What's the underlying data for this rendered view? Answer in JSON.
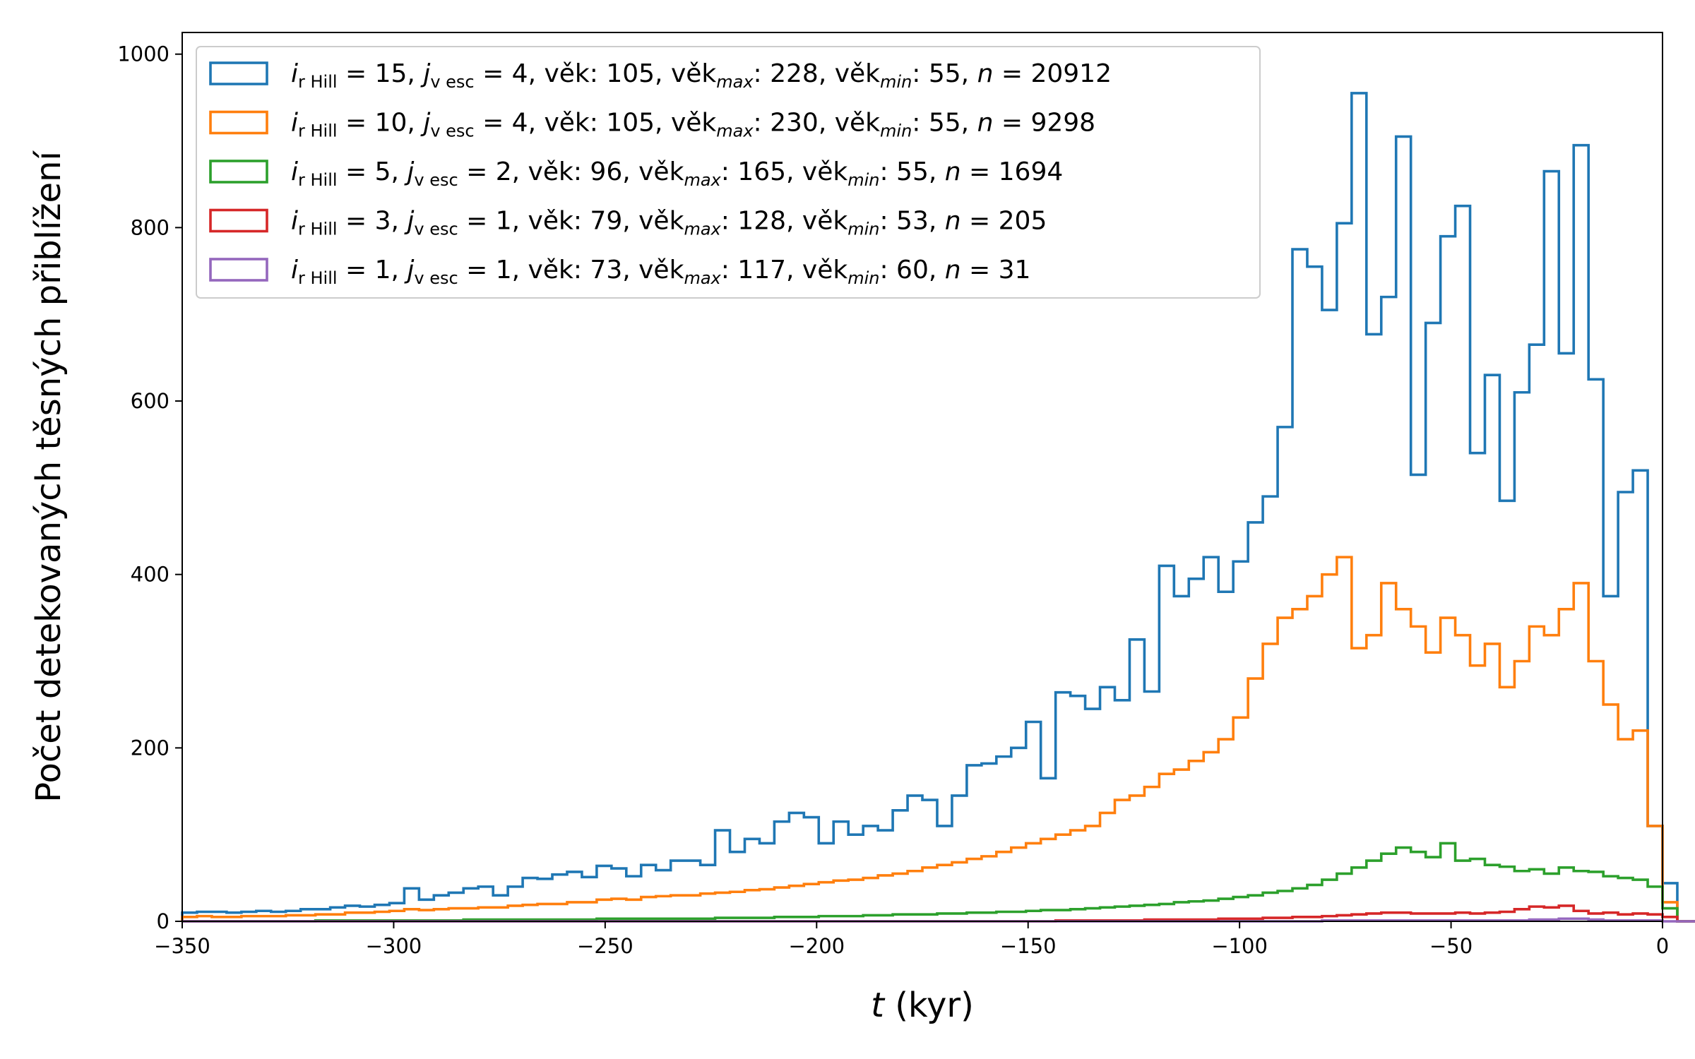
{
  "chart_data": {
    "type": "histogram",
    "xlabel_var": "t",
    "xlabel_unit": "(kyr)",
    "ylabel": "Počet detekovaných těsných přiblížení",
    "xlim": [
      -350,
      0
    ],
    "ylim": [
      0,
      1025
    ],
    "xticks": [
      -350,
      -300,
      -250,
      -200,
      -150,
      -100,
      -50,
      0
    ],
    "xtick_labels": [
      "−350",
      "−300",
      "−250",
      "−200",
      "−150",
      "−100",
      "−50",
      "0"
    ],
    "yticks": [
      0,
      200,
      400,
      600,
      800,
      1000
    ],
    "ytick_labels": [
      "0",
      "200",
      "400",
      "600",
      "800",
      "1000"
    ],
    "bin_start": -350,
    "bin_width": 3.5,
    "grid": false,
    "legend_position": "upper left",
    "series": [
      {
        "color": "#1f77b4",
        "legend": {
          "i": "15",
          "j": "4",
          "age": "105",
          "age_max": "228",
          "age_min": "55",
          "n": "20912"
        },
        "values": [
          10,
          11,
          11,
          10,
          11,
          12,
          11,
          12,
          14,
          14,
          16,
          18,
          17,
          19,
          21,
          38,
          25,
          30,
          33,
          38,
          40,
          30,
          40,
          50,
          49,
          54,
          57,
          51,
          64,
          61,
          52,
          65,
          59,
          70,
          70,
          65,
          105,
          80,
          95,
          90,
          115,
          125,
          120,
          90,
          115,
          100,
          110,
          105,
          128,
          145,
          140,
          110,
          145,
          180,
          182,
          190,
          200,
          230,
          165,
          264,
          260,
          245,
          270,
          255,
          325,
          265,
          410,
          375,
          395,
          420,
          380,
          415,
          460,
          490,
          570,
          775,
          755,
          705,
          805,
          955,
          677,
          720,
          905,
          515,
          690,
          790,
          825,
          540,
          630,
          485,
          610,
          665,
          865,
          655,
          895,
          625,
          375,
          495,
          520,
          110,
          44,
          0,
          0,
          0,
          0,
          0,
          0,
          0,
          0,
          0,
          0,
          0,
          0,
          0,
          0,
          0,
          0,
          0,
          0,
          0,
          0,
          0,
          0,
          0,
          0
        ]
      },
      {
        "color": "#ff7f0e",
        "legend": {
          "i": "10",
          "j": "4",
          "age": "105",
          "age_max": "230",
          "age_min": "55",
          "n": "9298"
        },
        "values": [
          5,
          6,
          5,
          5,
          6,
          6,
          6,
          7,
          7,
          8,
          8,
          10,
          10,
          11,
          12,
          14,
          13,
          14,
          15,
          15,
          16,
          16,
          18,
          19,
          20,
          20,
          22,
          22,
          25,
          26,
          25,
          28,
          29,
          30,
          30,
          32,
          33,
          34,
          36,
          37,
          39,
          41,
          43,
          45,
          47,
          48,
          50,
          53,
          55,
          58,
          62,
          65,
          68,
          72,
          75,
          80,
          85,
          90,
          95,
          100,
          105,
          110,
          125,
          140,
          145,
          155,
          170,
          175,
          185,
          195,
          210,
          235,
          280,
          320,
          350,
          360,
          375,
          400,
          420,
          315,
          330,
          390,
          360,
          340,
          310,
          350,
          330,
          295,
          320,
          270,
          300,
          340,
          330,
          360,
          390,
          300,
          250,
          210,
          220,
          110,
          22,
          0,
          0,
          0,
          0,
          0,
          0,
          0,
          0,
          0,
          0,
          0,
          0,
          0,
          0,
          0,
          0,
          0,
          0,
          0,
          0,
          0,
          0,
          0,
          0
        ]
      },
      {
        "color": "#2ca02c",
        "legend": {
          "i": " 5",
          "j": "2",
          "age": " 96",
          "age_max": "165",
          "age_min": "55",
          "n": "1694"
        },
        "values": [
          0,
          0,
          0,
          0,
          0,
          0,
          0,
          0,
          0,
          1,
          1,
          1,
          1,
          1,
          1,
          1,
          1,
          1,
          1,
          2,
          2,
          2,
          2,
          2,
          2,
          2,
          2,
          2,
          3,
          3,
          3,
          3,
          3,
          3,
          3,
          3,
          4,
          4,
          4,
          4,
          5,
          5,
          5,
          6,
          6,
          6,
          7,
          7,
          8,
          8,
          8,
          9,
          9,
          10,
          10,
          11,
          11,
          12,
          13,
          13,
          14,
          15,
          16,
          17,
          18,
          19,
          20,
          22,
          23,
          24,
          26,
          28,
          30,
          33,
          35,
          38,
          42,
          48,
          55,
          62,
          70,
          78,
          85,
          80,
          74,
          90,
          70,
          72,
          65,
          63,
          58,
          60,
          55,
          62,
          58,
          57,
          52,
          50,
          48,
          40,
          15,
          0,
          0,
          0,
          0,
          0,
          0,
          0,
          0,
          0,
          0,
          0,
          0,
          0,
          0,
          0,
          0,
          0,
          0,
          0,
          0,
          0,
          0,
          0,
          0
        ]
      },
      {
        "color": "#d62728",
        "legend": {
          "i": " 3",
          "j": "1",
          "age": " 79",
          "age_max": "128",
          "age_min": "53",
          "n": "205"
        },
        "values": [
          0,
          0,
          0,
          0,
          0,
          0,
          0,
          0,
          0,
          0,
          0,
          0,
          0,
          0,
          0,
          0,
          0,
          0,
          0,
          0,
          0,
          0,
          0,
          0,
          0,
          0,
          0,
          0,
          0,
          0,
          0,
          0,
          0,
          0,
          0,
          0,
          0,
          0,
          0,
          0,
          0,
          0,
          0,
          0,
          0,
          0,
          0,
          0,
          0,
          0,
          0,
          0,
          0,
          0,
          0,
          0,
          0,
          0,
          0,
          1,
          1,
          1,
          1,
          1,
          1,
          2,
          2,
          2,
          2,
          2,
          3,
          3,
          3,
          4,
          4,
          5,
          5,
          6,
          7,
          8,
          9,
          10,
          10,
          9,
          9,
          9,
          10,
          9,
          10,
          11,
          14,
          17,
          16,
          18,
          12,
          9,
          10,
          8,
          9,
          8,
          5,
          0,
          0,
          0,
          0,
          0,
          0,
          0,
          0,
          0,
          0,
          0,
          0,
          0,
          0,
          0,
          0,
          0,
          0,
          0,
          0,
          0,
          0,
          0,
          0
        ]
      },
      {
        "color": "#9467bd",
        "legend": {
          "i": " 1",
          "j": "1",
          "age": " 73",
          "age_max": "117",
          "age_min": "60",
          "n": "31"
        },
        "values": [
          0,
          0,
          0,
          0,
          0,
          0,
          0,
          0,
          0,
          0,
          0,
          0,
          0,
          0,
          0,
          0,
          0,
          0,
          0,
          0,
          0,
          0,
          0,
          0,
          0,
          0,
          0,
          0,
          0,
          0,
          0,
          0,
          0,
          0,
          0,
          0,
          0,
          0,
          0,
          0,
          0,
          0,
          0,
          0,
          0,
          0,
          0,
          0,
          0,
          0,
          0,
          0,
          0,
          0,
          0,
          0,
          0,
          0,
          0,
          0,
          0,
          0,
          0,
          0,
          0,
          0,
          0,
          0,
          0,
          0,
          0,
          0,
          0,
          0,
          0,
          0,
          0,
          1,
          1,
          1,
          1,
          1,
          1,
          1,
          1,
          1,
          1,
          1,
          1,
          1,
          1,
          2,
          2,
          3,
          3,
          2,
          1,
          1,
          1,
          1,
          0,
          0,
          0,
          0,
          0,
          0,
          0,
          0,
          0,
          0,
          0,
          0,
          0,
          0,
          0,
          0,
          0,
          0,
          0,
          0,
          0,
          0,
          0,
          0,
          0
        ]
      }
    ]
  },
  "legend_labels": {
    "i_var": "i",
    "i_sub": "r Hill",
    "j_var": "j",
    "j_sub": "v esc",
    "age_word": "věk",
    "max_sub": "max",
    "min_sub": "min",
    "n_var": "n"
  }
}
